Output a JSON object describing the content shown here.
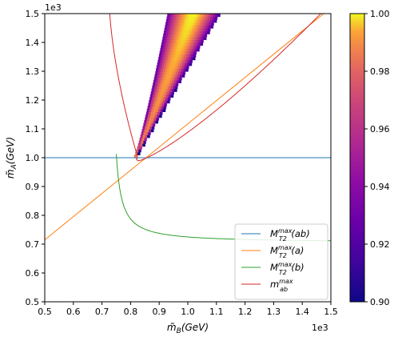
{
  "chart_data": {
    "type": "heatmap",
    "xlabel": "m̃_B(GeV)",
    "ylabel": "m̃_A(GeV)",
    "xlim": [
      0.5,
      1.5
    ],
    "ylim": [
      0.5,
      1.5
    ],
    "x_offset_text": "1e3",
    "y_offset_text": "1e3",
    "x_ticks": [
      "0.5",
      "0.6",
      "0.7",
      "0.8",
      "0.9",
      "1.0",
      "1.1",
      "1.2",
      "1.3",
      "1.4",
      "1.5"
    ],
    "y_ticks": [
      "0.5",
      "0.6",
      "0.7",
      "0.8",
      "0.9",
      "1.0",
      "1.1",
      "1.2",
      "1.3",
      "1.4",
      "1.5"
    ],
    "grid": false,
    "colorbar": {
      "colormap": "plasma",
      "range": [
        0.9,
        1.0
      ],
      "ticks": [
        "0.90",
        "0.92",
        "0.94",
        "0.96",
        "0.98",
        "1.00"
      ]
    },
    "heatmap_region": {
      "description_points": "band from (0.81,1.0) widening up to y=1.5 between x≈0.93 and x≈1.11",
      "peak_value": 1.0,
      "min_value": 0.9
    },
    "legend": {
      "position": "lower-right",
      "entries": [
        {
          "base": "M",
          "sub": "T2",
          "sup": "max",
          "arg": "(ab)",
          "color": "#1f77b4"
        },
        {
          "base": "M",
          "sub": "T2",
          "sup": "max",
          "arg": "(a)",
          "color": "#ff7f0e"
        },
        {
          "base": "M",
          "sub": "T2",
          "sup": "max",
          "arg": "(b)",
          "color": "#2ca02c"
        },
        {
          "base": "m",
          "sub": "ab",
          "sup": "max",
          "arg": "",
          "color": "#d62728"
        }
      ]
    },
    "series": [
      {
        "name": "M_T2^max(ab)",
        "color": "#1f77b4",
        "kind": "horizontal",
        "y": 1.0
      },
      {
        "name": "M_T2^max(a)",
        "color": "#ff7f0e",
        "kind": "line",
        "points": [
          [
            0.5,
            0.715
          ],
          [
            1.5,
            1.52
          ]
        ]
      },
      {
        "name": "M_T2^max(b)",
        "color": "#2ca02c",
        "kind": "curve"
      },
      {
        "name": "m_ab^max",
        "color": "#d62728",
        "kind": "curve"
      }
    ]
  }
}
